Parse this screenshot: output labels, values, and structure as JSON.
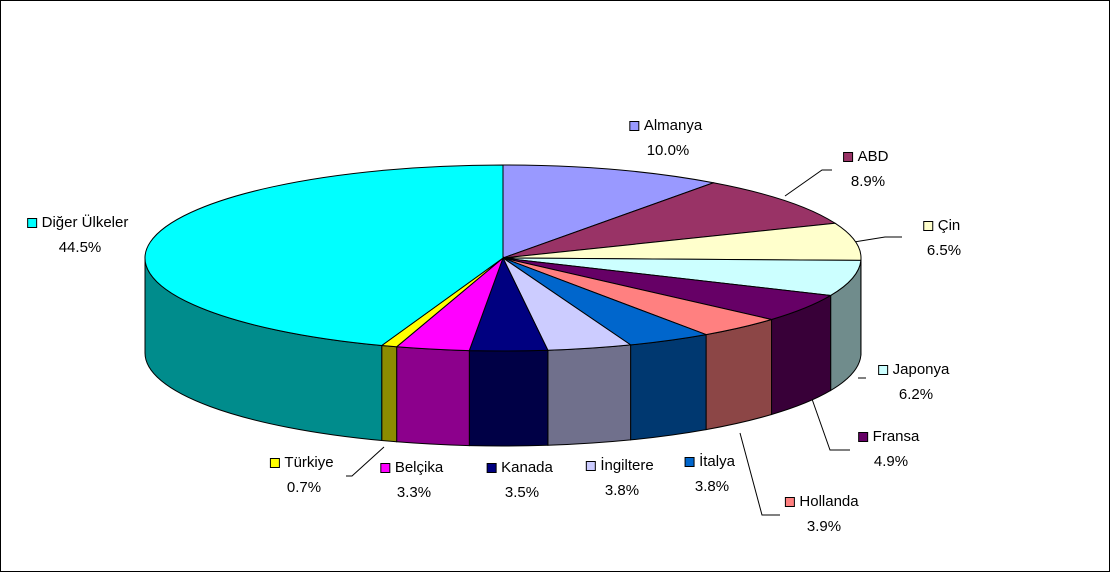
{
  "chart_data": {
    "type": "pie3d",
    "categories": [
      "Almanya",
      "ABD",
      "Çin",
      "Japonya",
      "Fransa",
      "Hollanda",
      "İtalya",
      "İngiltere",
      "Kanada",
      "Belçika",
      "Türkiye",
      "Diğer Ülkeler"
    ],
    "values": [
      10.0,
      8.9,
      6.5,
      6.2,
      4.9,
      3.9,
      3.8,
      3.8,
      3.5,
      3.3,
      0.7,
      44.5
    ],
    "value_labels": [
      "10.0%",
      "8.9%",
      "6.5%",
      "6.2%",
      "4.9%",
      "3.9%",
      "3.8%",
      "3.8%",
      "3.5%",
      "3.3%",
      "0.7%",
      "44.5%"
    ],
    "colors": [
      "#9999ff",
      "#993366",
      "#ffffcc",
      "#ccffff",
      "#660066",
      "#ff8080",
      "#0066cc",
      "#ccccff",
      "#000080",
      "#ff00ff",
      "#ffff00",
      "#00ffff"
    ]
  }
}
